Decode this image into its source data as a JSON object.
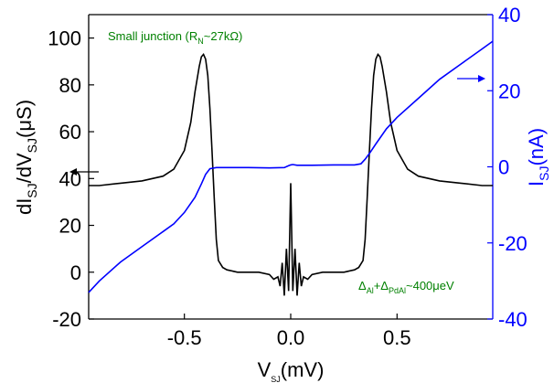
{
  "chart_data": {
    "type": "line",
    "xlabel": "V",
    "xlabel_sub": "SJ",
    "xlabel_unit": "(mV)",
    "ylabel_left_prefix": "dI",
    "ylabel_left_sub1": "SJ",
    "ylabel_left_mid": "/dV",
    "ylabel_left_sub2": "SJ",
    "ylabel_left_unit": "(μS)",
    "ylabel_right": "I",
    "ylabel_right_sub": "SJ",
    "ylabel_right_unit": "(nA)",
    "xlim": [
      -0.95,
      0.95
    ],
    "ylim_left": [
      -20,
      110
    ],
    "ylim_right": [
      -40,
      40
    ],
    "x_ticks": [
      "-0.5",
      "0.0",
      "0.5"
    ],
    "x_tick_values": [
      -0.5,
      0.0,
      0.5
    ],
    "y_left_ticks": [
      "-20",
      "0",
      "20",
      "40",
      "60",
      "80",
      "100"
    ],
    "y_left_tick_values": [
      -20,
      0,
      20,
      40,
      60,
      80,
      100
    ],
    "y_right_ticks": [
      "-40",
      "-20",
      "0",
      "20",
      "40"
    ],
    "y_right_tick_values": [
      -40,
      -20,
      0,
      20,
      40
    ],
    "grid": false,
    "colors": {
      "conductance": "#000000",
      "current": "#0000ff",
      "right_axis": "#0000ff",
      "annotation": "#008000"
    },
    "annotations": {
      "junction": {
        "prefix": "Small junction (R",
        "sub": "N",
        "suffix": "~27kΩ)"
      },
      "gap": {
        "p1": "Δ",
        "s1": "Al",
        "p2": "+Δ",
        "s2": "PdAl",
        "p3": "~400μeV"
      }
    },
    "series": [
      {
        "axis": "left",
        "x": [
          -0.95,
          -0.9,
          -0.8,
          -0.7,
          -0.6,
          -0.55,
          -0.5,
          -0.47,
          -0.45,
          -0.43,
          -0.42,
          -0.41,
          -0.4,
          -0.39,
          -0.38,
          -0.37,
          -0.36,
          -0.35,
          -0.34,
          -0.32,
          -0.3,
          -0.25,
          -0.2,
          -0.15,
          -0.1,
          -0.08,
          -0.06,
          -0.05,
          -0.04,
          -0.03,
          -0.02,
          -0.01,
          0.0,
          0.01,
          0.02,
          0.03,
          0.04,
          0.05,
          0.06,
          0.08,
          0.1,
          0.15,
          0.2,
          0.25,
          0.3,
          0.32,
          0.34,
          0.35,
          0.36,
          0.37,
          0.38,
          0.39,
          0.4,
          0.41,
          0.42,
          0.43,
          0.45,
          0.47,
          0.5,
          0.55,
          0.6,
          0.7,
          0.8,
          0.9,
          0.95
        ],
        "values": [
          37,
          37,
          38,
          39,
          41,
          44,
          52,
          64,
          77,
          88,
          92,
          93,
          91,
          84,
          70,
          52,
          32,
          14,
          5,
          2,
          1,
          0,
          0,
          0,
          -1,
          -3,
          -2,
          -6,
          4,
          -10,
          10,
          -8,
          38,
          -8,
          10,
          -10,
          4,
          -6,
          -2,
          -3,
          -1,
          0,
          0,
          0,
          1,
          2,
          5,
          14,
          32,
          52,
          70,
          84,
          91,
          93,
          92,
          88,
          77,
          64,
          52,
          44,
          41,
          39,
          38,
          37,
          37
        ]
      },
      {
        "axis": "right",
        "x": [
          -0.95,
          -0.9,
          -0.8,
          -0.7,
          -0.6,
          -0.55,
          -0.5,
          -0.45,
          -0.42,
          -0.4,
          -0.38,
          -0.35,
          -0.3,
          -0.2,
          -0.1,
          -0.03,
          -0.01,
          0.0,
          0.01,
          0.03,
          0.1,
          0.2,
          0.3,
          0.33,
          0.35,
          0.37,
          0.4,
          0.45,
          0.5,
          0.6,
          0.7,
          0.8,
          0.9,
          0.95
        ],
        "values": [
          -33,
          -30,
          -25,
          -21,
          -17,
          -15,
          -12,
          -8,
          -4.5,
          -2,
          -0.5,
          -0.2,
          -0.2,
          -0.2,
          -0.3,
          -0.2,
          0.3,
          0.5,
          0.6,
          0.4,
          0.4,
          0.5,
          0.5,
          0.8,
          2,
          3.5,
          6,
          10,
          13,
          18,
          23,
          27,
          31,
          33
        ]
      }
    ]
  }
}
